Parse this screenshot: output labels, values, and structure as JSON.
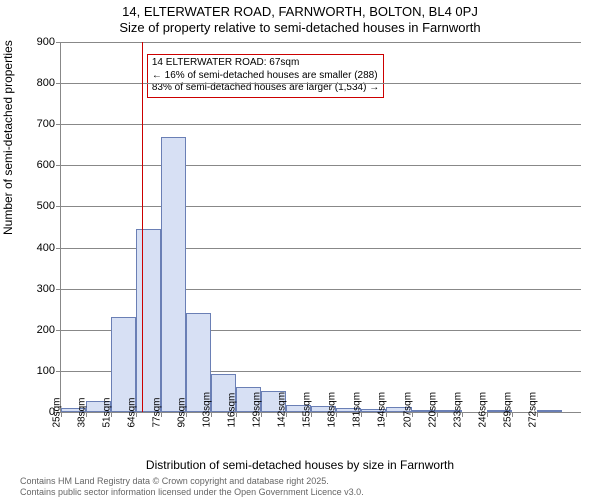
{
  "title_main": "14, ELTERWATER ROAD, FARNWORTH, BOLTON, BL4 0PJ",
  "title_sub": "Size of property relative to semi-detached houses in Farnworth",
  "ylabel": "Number of semi-detached properties",
  "xlabel": "Distribution of semi-detached houses by size in Farnworth",
  "footer1": "Contains HM Land Registry data © Crown copyright and database right 2025.",
  "footer2": "Contains public sector information licensed under the Open Government Licence v3.0.",
  "annotation": {
    "line1": "14 ELTERWATER ROAD: 67sqm",
    "line2": "← 16% of semi-detached houses are smaller (288)",
    "line3": "83% of semi-detached houses are larger (1,534) →"
  },
  "chart": {
    "type": "histogram",
    "background_color": "#ffffff",
    "bar_fill": "#d7e0f4",
    "bar_stroke": "#6a7fb5",
    "grid_color": "#888888",
    "marker_color": "#cc0000",
    "annotation_border": "#cc0000",
    "ylim": [
      0,
      900
    ],
    "ytick_step": 100,
    "xtick_start": 25,
    "xtick_end": 282,
    "xtick_step": 13,
    "xtick_rotation": -90,
    "marker_x": 67,
    "bars": [
      {
        "x": 25,
        "w": 13,
        "y": 10
      },
      {
        "x": 38,
        "w": 13,
        "y": 28
      },
      {
        "x": 51,
        "w": 13,
        "y": 230
      },
      {
        "x": 64,
        "w": 13,
        "y": 445
      },
      {
        "x": 77,
        "w": 13,
        "y": 670
      },
      {
        "x": 90,
        "w": 13,
        "y": 240
      },
      {
        "x": 103,
        "w": 13,
        "y": 92
      },
      {
        "x": 116,
        "w": 13,
        "y": 60
      },
      {
        "x": 129,
        "w": 13,
        "y": 50
      },
      {
        "x": 142,
        "w": 13,
        "y": 18
      },
      {
        "x": 155,
        "w": 13,
        "y": 14
      },
      {
        "x": 168,
        "w": 13,
        "y": 10
      },
      {
        "x": 181,
        "w": 13,
        "y": 8
      },
      {
        "x": 194,
        "w": 13,
        "y": 12
      },
      {
        "x": 207,
        "w": 13,
        "y": 2
      },
      {
        "x": 220,
        "w": 13,
        "y": 2
      },
      {
        "x": 233,
        "w": 13,
        "y": 0
      },
      {
        "x": 246,
        "w": 13,
        "y": 2
      },
      {
        "x": 259,
        "w": 13,
        "y": 0
      },
      {
        "x": 272,
        "w": 13,
        "y": 2
      }
    ],
    "title_fontsize": 13,
    "label_fontsize": 12,
    "tick_fontsize": 11,
    "xtick_fontsize": 10,
    "annotation_fontsize": 10,
    "footer_fontsize": 9
  }
}
